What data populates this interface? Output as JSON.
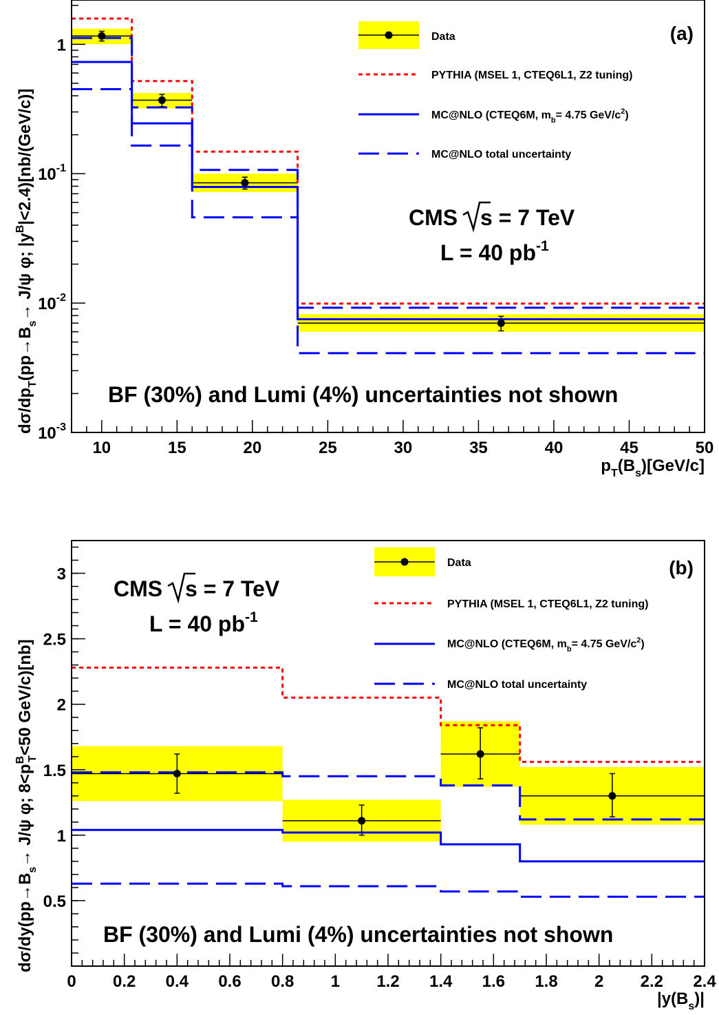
{
  "chart_data": [
    {
      "type": "line",
      "panel_label": "(a)",
      "xlabel": "p_T(B_s)[GeV/c]",
      "ylabel": "dσ/dp_T(pp→B_s→ J/ψ φ; |y^B|<2.4)[nb/(GeV/c)]",
      "xlim": [
        8,
        50
      ],
      "ylim": [
        0.001,
        2.2
      ],
      "y_scale": "log",
      "x_ticks": [
        10,
        15,
        20,
        25,
        30,
        35,
        40,
        45,
        50
      ],
      "y_ticks": [
        {
          "value": 1,
          "label": "1"
        },
        {
          "value": 0.1,
          "label": "10^-1"
        },
        {
          "value": 0.01,
          "label": "10^-2"
        },
        {
          "value": 0.001,
          "label": "10^-3"
        }
      ],
      "bin_edges": [
        8,
        12,
        16,
        23,
        50
      ],
      "data": {
        "x": [
          10,
          14,
          19.5,
          36.5
        ],
        "x_err_low": [
          2,
          2,
          3.5,
          13.5
        ],
        "x_err_high": [
          2,
          2,
          3.5,
          13.5
        ],
        "y": [
          1.16,
          0.37,
          0.085,
          0.007
        ],
        "y_err_low": [
          0.1,
          0.04,
          0.009,
          0.0009
        ],
        "y_err_high": [
          0.1,
          0.04,
          0.009,
          0.0009
        ],
        "sys_low": [
          1.0,
          0.32,
          0.072,
          0.006
        ],
        "sys_high": [
          1.32,
          0.42,
          0.1,
          0.0082
        ]
      },
      "pythia": [
        1.58,
        0.52,
        0.148,
        0.0099
      ],
      "mcatnlo": [
        0.73,
        0.245,
        0.079,
        0.0075
      ],
      "mcatnlo_upper": [
        1.12,
        0.325,
        0.107,
        0.0092
      ],
      "mcatnlo_lower": [
        0.45,
        0.165,
        0.046,
        0.0041
      ],
      "legend": [
        {
          "key": "data",
          "label": "Data"
        },
        {
          "key": "pythia",
          "label": "PYTHIA (MSEL 1, CTEQ6L1, Z2 tuning)"
        },
        {
          "key": "mcatnlo",
          "label": "MC@NLO (CTEQ6M, m_b= 4.75 GeV/c^2)"
        },
        {
          "key": "band",
          "label": "MC@NLO total uncertainty"
        }
      ],
      "legend_position": "top-right",
      "annotations": {
        "cms": "CMS √s = 7 TeV",
        "lumi": "L = 40 pb^-1",
        "note": "BF (30%) and Lumi (4%) uncertainties not shown"
      }
    },
    {
      "type": "line",
      "panel_label": "(b)",
      "xlabel": "|y(B_s)|",
      "ylabel": "dσ/dy(pp→B_s→ J/ψ φ; 8<p_T^B<50 GeV/c)[nb]",
      "xlim": [
        0,
        2.4
      ],
      "ylim": [
        0,
        3.25
      ],
      "y_scale": "linear",
      "x_ticks": [
        0,
        0.2,
        0.4,
        0.6,
        0.8,
        1,
        1.2,
        1.4,
        1.6,
        1.8,
        2,
        2.2,
        2.4
      ],
      "y_ticks": [
        0.5,
        1,
        1.5,
        2,
        2.5,
        3
      ],
      "bin_edges": [
        0,
        0.8,
        1.4,
        1.7,
        2.4
      ],
      "data": {
        "x": [
          0.4,
          1.1,
          1.55,
          2.05
        ],
        "x_err_low": [
          0.4,
          0.3,
          0.15,
          0.35
        ],
        "x_err_high": [
          0.4,
          0.3,
          0.15,
          0.35
        ],
        "y": [
          1.47,
          1.11,
          1.62,
          1.3
        ],
        "y_err_low": [
          0.15,
          0.11,
          0.19,
          0.16
        ],
        "y_err_high": [
          0.15,
          0.12,
          0.2,
          0.17
        ],
        "sys_low": [
          1.26,
          0.95,
          1.37,
          1.08
        ],
        "sys_high": [
          1.68,
          1.27,
          1.87,
          1.52
        ]
      },
      "pythia": [
        2.28,
        2.05,
        1.84,
        1.56
      ],
      "mcatnlo": [
        1.04,
        1.02,
        0.93,
        0.8
      ],
      "mcatnlo_upper": [
        1.48,
        1.45,
        1.38,
        1.12
      ],
      "mcatnlo_lower": [
        0.63,
        0.61,
        0.57,
        0.53
      ],
      "legend": [
        {
          "key": "data",
          "label": "Data"
        },
        {
          "key": "pythia",
          "label": "PYTHIA (MSEL 1, CTEQ6L1, Z2 tuning)"
        },
        {
          "key": "mcatnlo",
          "label": "MC@NLO (CTEQ6M, m_b= 4.75 GeV/c^2)"
        },
        {
          "key": "band",
          "label": "MC@NLO total uncertainty"
        }
      ],
      "legend_position": "top-right",
      "annotations": {
        "cms": "CMS √s = 7 TeV",
        "lumi": "L = 40 pb^-1",
        "note": "BF (30%) and Lumi (4%) uncertainties not shown"
      }
    }
  ],
  "colors": {
    "band": "#ffff00",
    "pythia": "#ff0000",
    "mcatnlo": "#0000ff",
    "data": "#000000"
  }
}
